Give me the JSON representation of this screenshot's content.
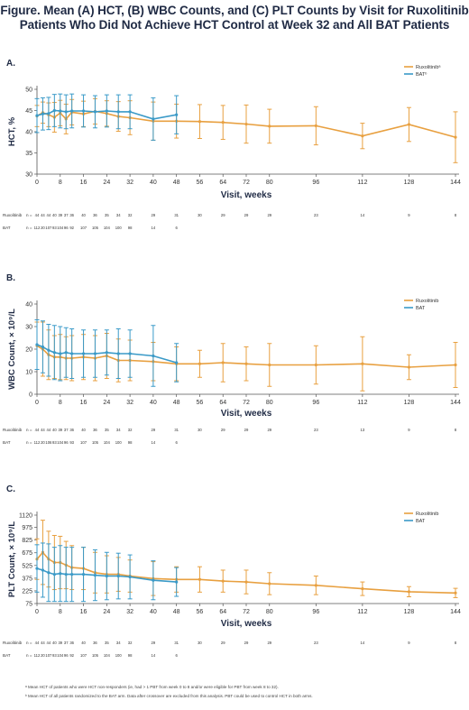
{
  "figure": {
    "title_line1": "Figure. Mean (A) HCT, (B) WBC Counts, and (C) PLT Counts by Visit for Ruxolitinib",
    "title_line2": "Patients Who Did Not Achieve HCT Control at Week 32 and All BAT Patients"
  },
  "colors": {
    "ruxolitinib": "#e8a040",
    "bat": "#3a9ac8"
  },
  "chart_data": [
    {
      "panel": "A.",
      "type": "line",
      "ylabel": "HCT, %",
      "xlabel": "Visit, weeks",
      "ylim": [
        30,
        50
      ],
      "yticks": [
        30,
        35,
        40,
        45,
        50
      ],
      "xticks": [
        0,
        8,
        16,
        24,
        32,
        40,
        48,
        56,
        64,
        72,
        80,
        96,
        112,
        128,
        144
      ],
      "legend": [
        "Ruxolitinibᵃ",
        "BATᵇ"
      ],
      "legend_position": "top-right",
      "series": [
        {
          "name": "Ruxolitinibᵃ",
          "color": "#e8a040",
          "x": [
            0,
            2,
            4,
            6,
            8,
            10,
            12,
            16,
            20,
            24,
            28,
            32,
            40,
            48,
            56,
            64,
            72,
            80,
            96,
            112,
            128,
            144
          ],
          "y": [
            43.7,
            44.5,
            44.0,
            43.4,
            44.4,
            43.0,
            44.6,
            44.2,
            44.8,
            44.3,
            43.6,
            43.3,
            42.5,
            42.5,
            42.4,
            42.2,
            41.8,
            41.3,
            41.4,
            39.0,
            41.7,
            38.7
          ],
          "err": [
            2.5,
            2.5,
            2.8,
            3.5,
            3.0,
            3.5,
            3.0,
            3.0,
            3.0,
            3.0,
            3.5,
            4.0,
            4.5,
            4.0,
            4.0,
            4.0,
            4.5,
            4.0,
            4.5,
            3.0,
            4.0,
            6.0
          ]
        },
        {
          "name": "BATᵇ",
          "color": "#3a9ac8",
          "x": [
            0,
            2,
            4,
            6,
            8,
            10,
            12,
            16,
            20,
            24,
            28,
            32,
            40,
            48
          ],
          "y": [
            43.8,
            44.2,
            44.3,
            45.0,
            44.9,
            44.7,
            44.9,
            44.9,
            44.7,
            44.9,
            44.7,
            44.7,
            43.0,
            44.0
          ],
          "err": [
            4.0,
            3.8,
            3.8,
            3.8,
            4.0,
            4.0,
            4.0,
            3.8,
            3.8,
            3.8,
            4.0,
            4.0,
            5.0,
            4.5
          ]
        }
      ],
      "at_risk": {
        "ruxolitinib_label": "Ruxolitinib",
        "bat_label": "BAT",
        "n_prefix": "n =",
        "ruxolitinib": [
          "44",
          "44",
          "44",
          "40",
          "39",
          "37",
          "36",
          "40",
          "36",
          "35",
          "34",
          "32",
          "29",
          "31",
          "30",
          "29",
          "29",
          "29",
          "23",
          "14",
          "9",
          "8"
        ],
        "bat": [
          "112",
          "20",
          "107",
          "93",
          "104",
          "96",
          "92",
          "107",
          "105",
          "104",
          "100",
          "98",
          "14",
          "6"
        ]
      }
    },
    {
      "panel": "B.",
      "type": "line",
      "ylabel": "WBC Count, × 10⁹/L",
      "xlabel": "Visit, weeks",
      "ylim": [
        0,
        40
      ],
      "yticks": [
        0,
        10,
        20,
        30,
        40
      ],
      "xticks": [
        0,
        8,
        16,
        24,
        32,
        40,
        48,
        56,
        64,
        72,
        80,
        96,
        112,
        128,
        144
      ],
      "legend": [
        "Ruxolitinib",
        "BAT"
      ],
      "legend_position": "top-right",
      "series": [
        {
          "name": "Ruxolitinib",
          "color": "#e8a040",
          "x": [
            0,
            2,
            4,
            6,
            8,
            10,
            12,
            16,
            20,
            24,
            28,
            32,
            40,
            48,
            56,
            64,
            72,
            80,
            96,
            112,
            128,
            144
          ],
          "y": [
            21.5,
            20.0,
            17.5,
            16.5,
            16.5,
            16.0,
            16.0,
            16.5,
            16.0,
            17.0,
            15.0,
            15.0,
            14.5,
            13.5,
            13.5,
            14.0,
            13.5,
            13.0,
            13.0,
            13.5,
            12.0,
            13.0
          ],
          "err": [
            10.5,
            12.0,
            11.0,
            9.5,
            10.0,
            9.5,
            10.0,
            10.0,
            10.0,
            10.0,
            9.5,
            9.0,
            8.5,
            7.5,
            6.0,
            8.5,
            7.5,
            9.5,
            8.5,
            12.0,
            5.5,
            10.0
          ]
        },
        {
          "name": "BAT",
          "color": "#3a9ac8",
          "x": [
            0,
            2,
            4,
            6,
            8,
            10,
            12,
            16,
            20,
            24,
            28,
            32,
            40,
            48
          ],
          "y": [
            22.0,
            21.0,
            19.5,
            18.5,
            18.0,
            18.5,
            18.0,
            18.0,
            18.0,
            18.5,
            18.0,
            18.0,
            17.0,
            14.0
          ],
          "err": [
            11.0,
            11.5,
            11.5,
            12.0,
            12.0,
            11.0,
            11.0,
            10.5,
            10.5,
            10.0,
            11.0,
            10.5,
            13.5,
            8.5
          ]
        }
      ],
      "at_risk": {
        "ruxolitinib_label": "Ruxolitinib",
        "bat_label": "BAT",
        "n_prefix": "n =",
        "ruxolitinib": [
          "44",
          "44",
          "44",
          "40",
          "39",
          "37",
          "36",
          "40",
          "36",
          "35",
          "34",
          "32",
          "29",
          "31",
          "30",
          "29",
          "29",
          "29",
          "23",
          "13",
          "9",
          "8"
        ],
        "bat": [
          "112",
          "20",
          "106",
          "93",
          "104",
          "96",
          "93",
          "107",
          "105",
          "104",
          "100",
          "98",
          "14",
          "6"
        ]
      }
    },
    {
      "panel": "C.",
      "type": "line",
      "ylabel": "PLT Count, × 10⁹/L",
      "xlabel": "Visit, weeks",
      "ylim": [
        75,
        1120
      ],
      "yticks": [
        75,
        225,
        375,
        525,
        675,
        825,
        975,
        1120
      ],
      "xticks": [
        0,
        8,
        16,
        24,
        32,
        40,
        48,
        56,
        64,
        72,
        80,
        96,
        112,
        128,
        144
      ],
      "legend": [
        "Ruxolitinib",
        "BAT"
      ],
      "legend_position": "top-right",
      "series": [
        {
          "name": "Ruxolitinib",
          "color": "#e8a040",
          "x": [
            0,
            2,
            4,
            6,
            8,
            10,
            12,
            16,
            20,
            24,
            28,
            32,
            40,
            48,
            56,
            64,
            72,
            80,
            96,
            112,
            128,
            144
          ],
          "y": [
            600,
            680,
            600,
            560,
            560,
            530,
            500,
            490,
            440,
            420,
            420,
            400,
            370,
            360,
            360,
            340,
            330,
            310,
            290,
            250,
            215,
            200
          ],
          "err": [
            240,
            380,
            330,
            320,
            310,
            280,
            260,
            250,
            240,
            220,
            200,
            190,
            200,
            150,
            150,
            130,
            140,
            130,
            110,
            80,
            60,
            55
          ]
        },
        {
          "name": "BAT",
          "color": "#3a9ac8",
          "x": [
            0,
            2,
            4,
            6,
            8,
            10,
            12,
            16,
            20,
            24,
            28,
            32,
            40,
            48
          ],
          "y": [
            490,
            470,
            440,
            420,
            430,
            420,
            420,
            420,
            410,
            400,
            400,
            390,
            350,
            330
          ],
          "err": [
            280,
            320,
            340,
            320,
            330,
            320,
            320,
            320,
            300,
            280,
            270,
            260,
            230,
            170
          ]
        }
      ],
      "at_risk": {
        "ruxolitinib_label": "Ruxolitinib",
        "bat_label": "BAT",
        "n_prefix": "n =",
        "ruxolitinib": [
          "44",
          "44",
          "44",
          "40",
          "39",
          "37",
          "36",
          "40",
          "36",
          "35",
          "34",
          "32",
          "29",
          "31",
          "30",
          "29",
          "29",
          "29",
          "23",
          "14",
          "9",
          "8"
        ],
        "bat": [
          "112",
          "20",
          "107",
          "93",
          "104",
          "96",
          "92",
          "107",
          "105",
          "104",
          "100",
          "98",
          "14",
          "6"
        ]
      }
    }
  ],
  "footnotes": {
    "a": "ᵃ Mean HCT of patients who were HCT non-responders (ie, had > 1 PBT from week 0 to 8 and/or were eligible for PBT from week 8 to 32).",
    "b": "ᵇ Mean HCT of all patients randomized to the BAT arm. Data after crossover are excluded from this analysis. PBT could be used to control HCT in both arms."
  }
}
